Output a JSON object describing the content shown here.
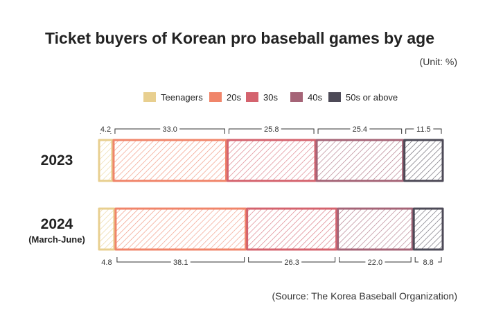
{
  "chart_data": {
    "type": "bar",
    "orientation": "horizontal-stacked",
    "title": "Ticket buyers of Korean pro baseball games by age",
    "unit": "(Unit: %)",
    "source": "(Source: The Korea Baseball Organization)",
    "legend_position": "top",
    "categories": [
      "2023",
      "2024"
    ],
    "category_sublabels": [
      "",
      "(March-June)"
    ],
    "series": [
      {
        "name": "Teenagers",
        "color": "#e8cf8f",
        "values": [
          4.2,
          4.8
        ]
      },
      {
        "name": "20s",
        "color": "#f0856a",
        "values": [
          33.0,
          38.1
        ]
      },
      {
        "name": "30s",
        "color": "#d4636e",
        "values": [
          25.8,
          26.3
        ]
      },
      {
        "name": "40s",
        "color": "#a56477",
        "values": [
          25.4,
          22.0
        ]
      },
      {
        "name": "50s or above",
        "color": "#4d4a57",
        "values": [
          11.5,
          8.8
        ]
      }
    ],
    "value_labels": [
      [
        "4.2",
        "33.0",
        "25.8",
        "25.4",
        "11.5"
      ],
      [
        "4.8",
        "38.1",
        "26.3",
        "22.0",
        "8.8"
      ]
    ]
  }
}
